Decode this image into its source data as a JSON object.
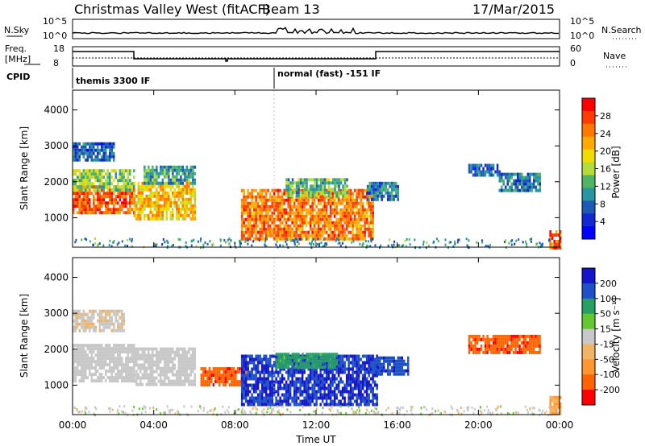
{
  "header": {
    "title": "Christmas Valley West (fitACF)",
    "beam": "Beam 13",
    "date": "17/Mar/2015"
  },
  "strips": {
    "nsky_label": "N.Sky",
    "nsky_ticks": [
      "10^5",
      "10^0"
    ],
    "nsearch_label": "N.Search",
    "nsearch_ticks": [
      "10^5",
      "10^0"
    ],
    "freq_label_1": "Freq.",
    "freq_label_2": "[MHz]",
    "freq_ticks": [
      "18",
      "8"
    ],
    "nave_label": "Nave",
    "nave_ticks": [
      "60",
      "0"
    ],
    "cpid_label": "CPID",
    "cpid_segments": [
      "themis 3300 IF",
      "normal (fast) -151 IF"
    ]
  },
  "panels": {
    "ylabel": "Slant Range [km]",
    "xlabel": "Time UT"
  },
  "colorbars": {
    "power": {
      "label": "Power [dB]",
      "ticks": [
        "28",
        "24",
        "20",
        "16",
        "12",
        "8",
        "4"
      ],
      "colors": [
        "#ff0000",
        "#ff3b00",
        "#ff7800",
        "#ffaa00",
        "#f0dc00",
        "#b4dc3c",
        "#50b464",
        "#2896a0",
        "#1e5ab4",
        "#1428d2",
        "#0000ff"
      ]
    },
    "velocity": {
      "label": "Velocity [m s⁻¹]",
      "ticks": [
        "200",
        "100",
        "50",
        "15",
        "-15",
        "-50",
        "-100",
        "-200"
      ],
      "colors": [
        "#1414c8",
        "#1e50c8",
        "#28a064",
        "#64c832",
        "#c8c8c8",
        "#f0b464",
        "#ff9632",
        "#ff6400",
        "#ff0000"
      ]
    }
  },
  "chart_data": [
    {
      "type": "heatmap",
      "name": "power",
      "x_ticks": [
        "00:00",
        "04:00",
        "08:00",
        "12:00",
        "16:00",
        "20:00",
        "00:00"
      ],
      "xlim_hours": [
        0,
        24
      ],
      "y_ticks": [
        1000,
        2000,
        3000,
        4000
      ],
      "ylim": [
        180,
        4550
      ],
      "ylabel": "Slant Range [km]",
      "colorbar": "Power [dB]",
      "blobs": [
        {
          "t0": 0.0,
          "t1": 3.0,
          "r0": 1150,
          "r1": 1900,
          "value": 26
        },
        {
          "t0": 0.0,
          "t1": 3.0,
          "r0": 1800,
          "r1": 2350,
          "value": 14
        },
        {
          "t0": 0.0,
          "t1": 2.0,
          "r0": 2600,
          "r1": 3100,
          "value": 6
        },
        {
          "t0": 3.0,
          "t1": 6.0,
          "r0": 1000,
          "r1": 2000,
          "value": 20
        },
        {
          "t0": 3.5,
          "t1": 6.0,
          "r0": 2000,
          "r1": 2450,
          "value": 10
        },
        {
          "t0": 8.3,
          "t1": 14.8,
          "r0": 450,
          "r1": 1800,
          "value": 24
        },
        {
          "t0": 10.5,
          "t1": 13.5,
          "r0": 1600,
          "r1": 2100,
          "value": 12
        },
        {
          "t0": 14.5,
          "t1": 16.0,
          "r0": 1500,
          "r1": 2000,
          "value": 8
        },
        {
          "t0": 19.5,
          "t1": 21.0,
          "r0": 2200,
          "r1": 2500,
          "value": 6
        },
        {
          "t0": 21.0,
          "t1": 23.0,
          "r0": 1750,
          "r1": 2250,
          "value": 8
        },
        {
          "t0": 23.5,
          "t1": 24.0,
          "r0": 200,
          "r1": 650,
          "value": 26
        }
      ]
    },
    {
      "type": "heatmap",
      "name": "velocity",
      "x_ticks": [
        "00:00",
        "04:00",
        "08:00",
        "12:00",
        "16:00",
        "20:00",
        "00:00"
      ],
      "xlim_hours": [
        0,
        24
      ],
      "y_ticks": [
        1000,
        2000,
        3000,
        4000
      ],
      "ylim": [
        180,
        4550
      ],
      "ylabel": "Slant Range [km]",
      "xlabel": "Time UT",
      "colorbar": "Velocity [m s⁻¹]",
      "blobs": [
        {
          "t0": 0.0,
          "t1": 3.0,
          "r0": 1150,
          "r1": 2150,
          "value": 0
        },
        {
          "t0": 0.0,
          "t1": 2.5,
          "r0": 2500,
          "r1": 3100,
          "value": -20
        },
        {
          "t0": 3.0,
          "t1": 6.0,
          "r0": 1000,
          "r1": 2050,
          "value": 0
        },
        {
          "t0": 6.3,
          "t1": 8.5,
          "r0": 1000,
          "r1": 1500,
          "value": -200
        },
        {
          "t0": 8.3,
          "t1": 15.0,
          "r0": 450,
          "r1": 1850,
          "value": 220
        },
        {
          "t0": 10.0,
          "t1": 13.0,
          "r0": 1500,
          "r1": 1900,
          "value": 120
        },
        {
          "t0": 15.0,
          "t1": 16.5,
          "r0": 1300,
          "r1": 1800,
          "value": 200
        },
        {
          "t0": 19.5,
          "t1": 23.0,
          "r0": 1900,
          "r1": 2400,
          "value": -200
        },
        {
          "t0": 23.5,
          "t1": 24.0,
          "r0": 200,
          "r1": 700,
          "value": -100
        }
      ]
    }
  ]
}
